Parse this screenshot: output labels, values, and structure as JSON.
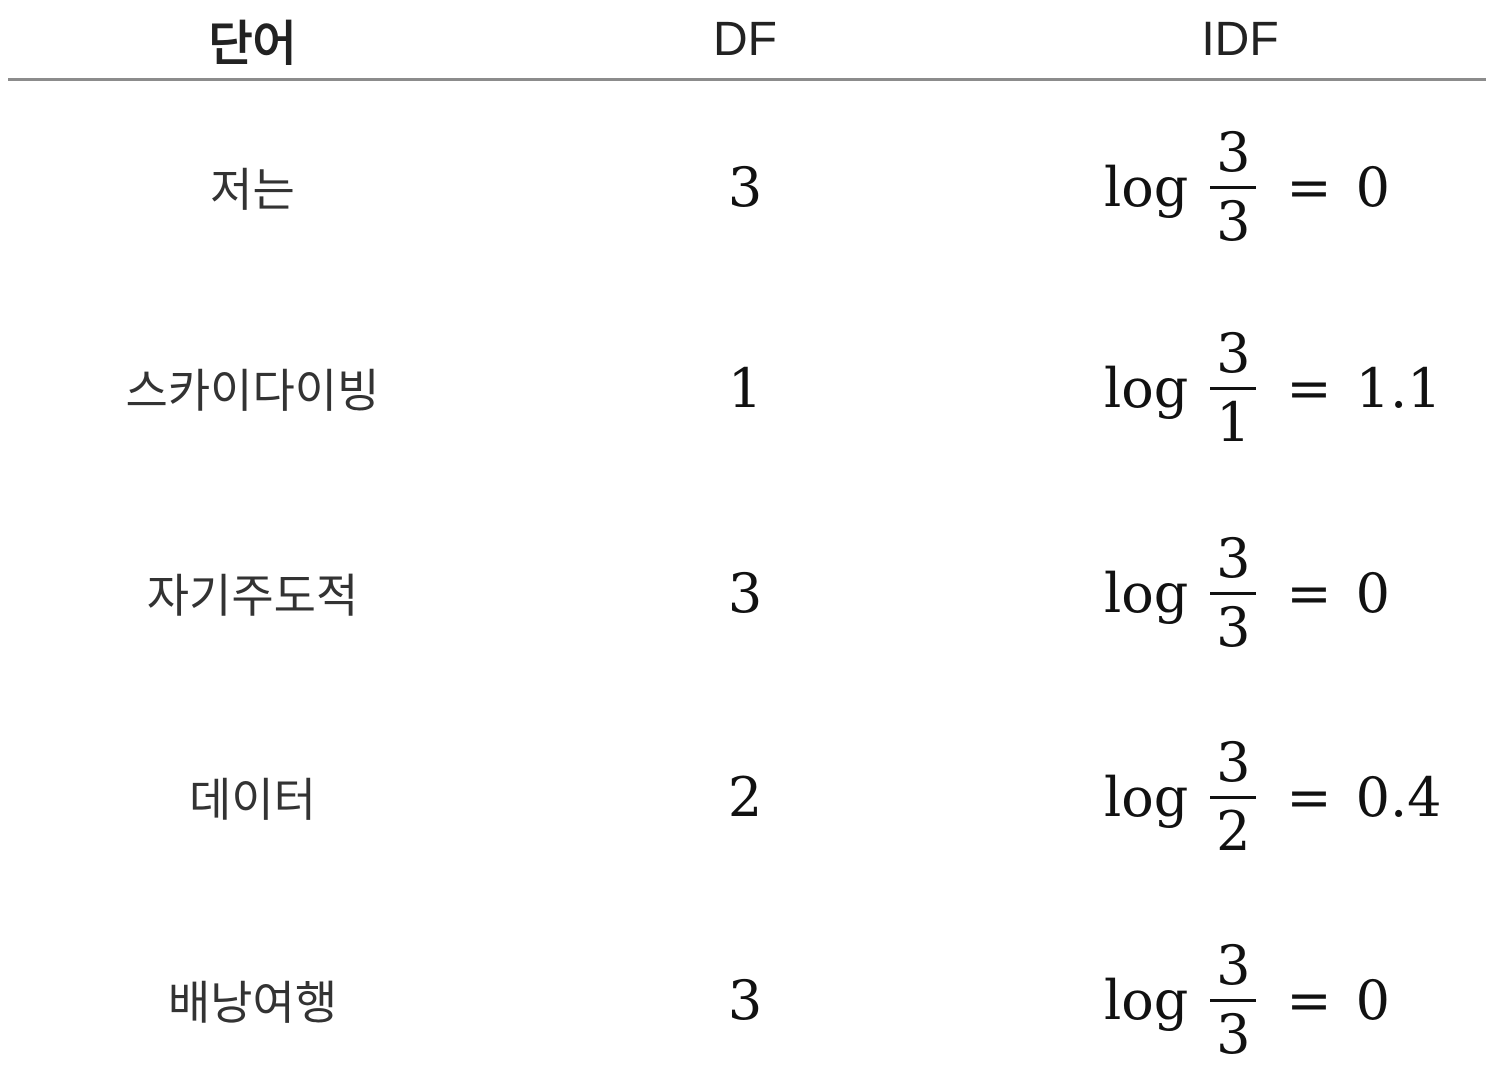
{
  "table": {
    "headers": {
      "word": "단어",
      "df": "DF",
      "idf": "IDF"
    },
    "rows": [
      {
        "word": "저는",
        "df": "3",
        "idf": {
          "log": "log",
          "numerator": "3",
          "denominator": "3",
          "equals": "=",
          "result": "0"
        }
      },
      {
        "word": "스카이다이빙",
        "df": "1",
        "idf": {
          "log": "log",
          "numerator": "3",
          "denominator": "1",
          "equals": "=",
          "result": "1.1"
        }
      },
      {
        "word": "자기주도적",
        "df": "3",
        "idf": {
          "log": "log",
          "numerator": "3",
          "denominator": "3",
          "equals": "=",
          "result": "0"
        }
      },
      {
        "word": "데이터",
        "df": "2",
        "idf": {
          "log": "log",
          "numerator": "3",
          "denominator": "2",
          "equals": "=",
          "result": "0.4"
        }
      },
      {
        "word": "배낭여행",
        "df": "3",
        "idf": {
          "log": "log",
          "numerator": "3",
          "denominator": "3",
          "equals": "=",
          "result": "0"
        }
      }
    ]
  }
}
